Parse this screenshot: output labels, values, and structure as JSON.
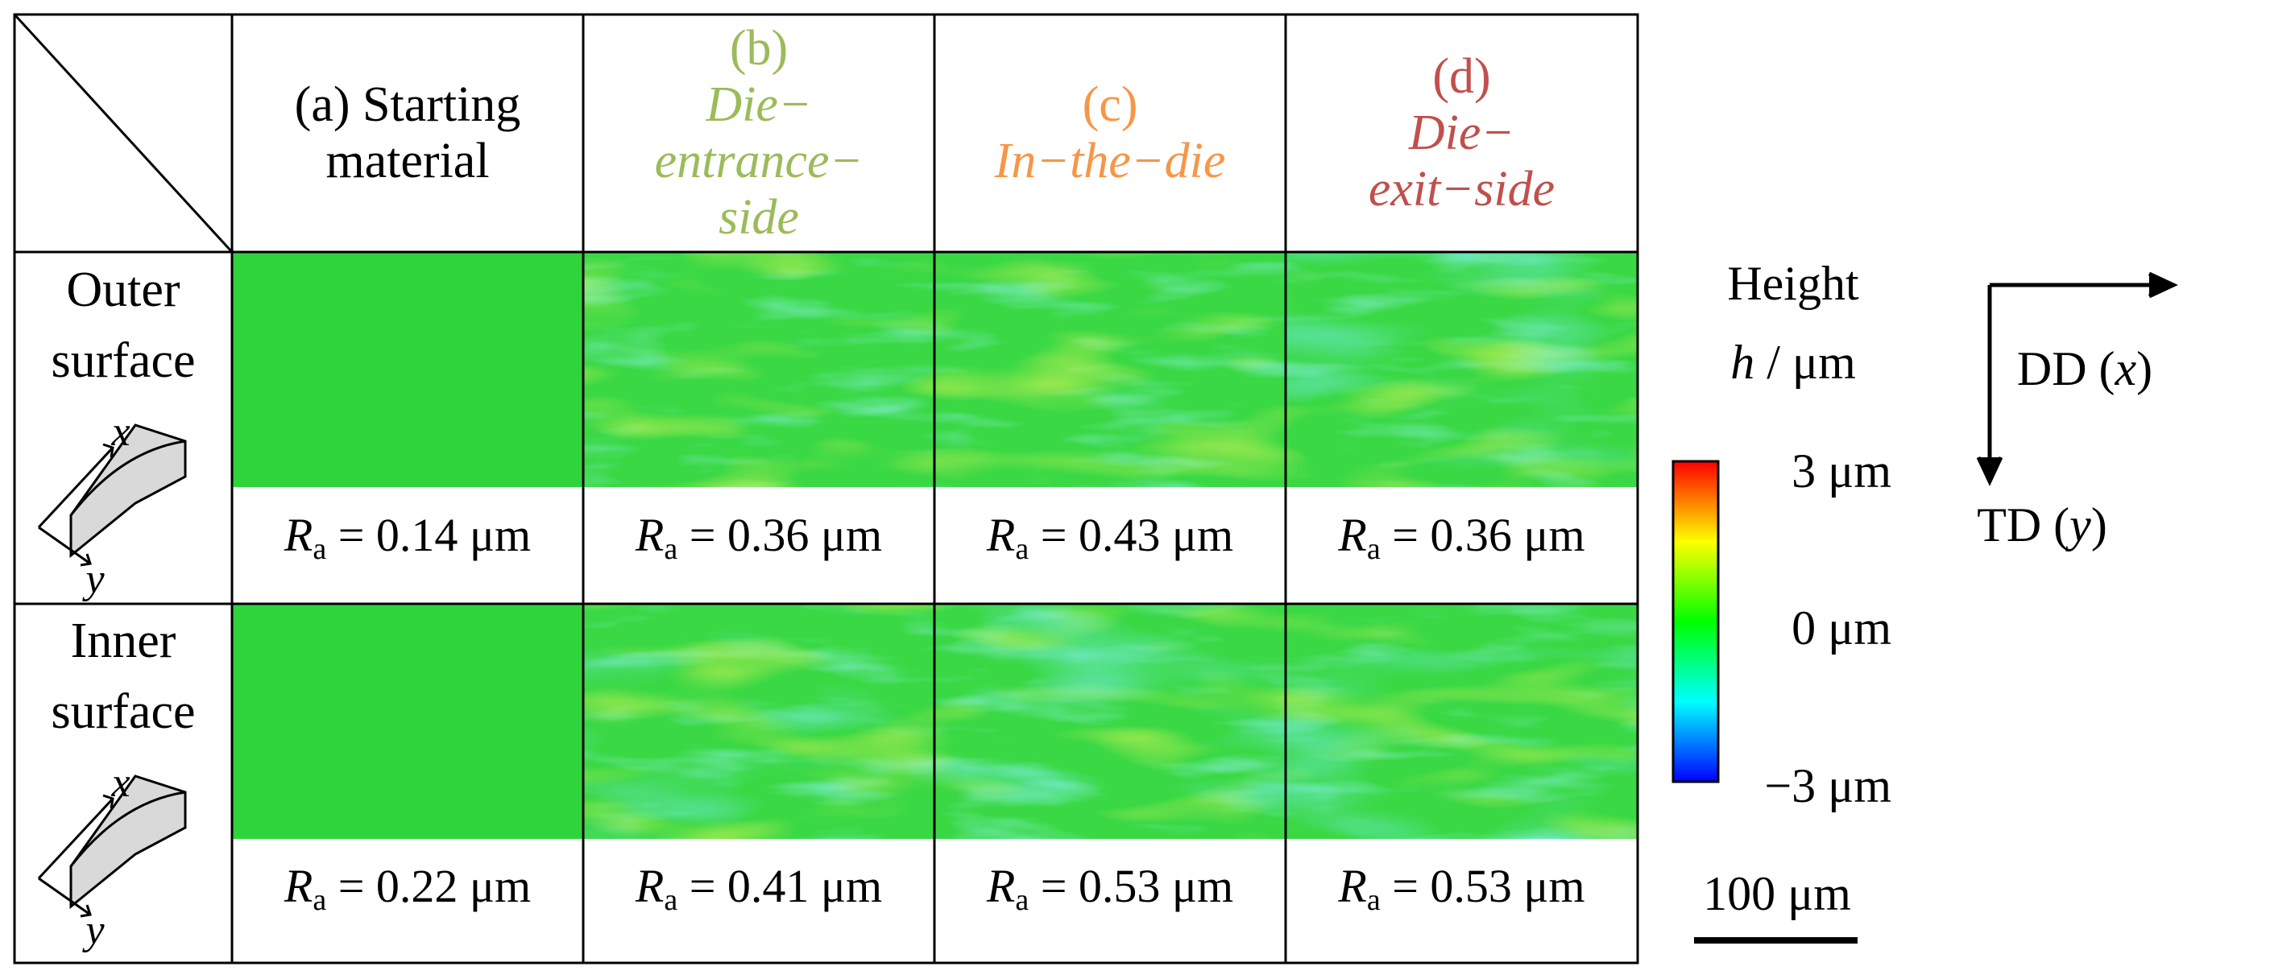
{
  "columns": [
    {
      "prefix": "(a)",
      "lines": [
        "Starting",
        "material"
      ],
      "italic": false,
      "color": "#000000"
    },
    {
      "prefix": "(b)",
      "lines": [
        "Die−",
        "entrance−",
        "side"
      ],
      "italic": true,
      "color": "#9bbb59"
    },
    {
      "prefix": "(c)",
      "lines": [
        "In−the−die"
      ],
      "italic": true,
      "color": "#f79646"
    },
    {
      "prefix": "(d)",
      "lines": [
        "Die−",
        "exit−side"
      ],
      "italic": true,
      "color": "#c0504d"
    }
  ],
  "rows": [
    {
      "label": [
        "Outer",
        "surface"
      ],
      "axis_x": "x",
      "axis_y": "y",
      "ra_symbol": "R",
      "ra_sub": "a",
      "ra_values": [
        "= 0.14 μm",
        "= 0.36 μm",
        "= 0.43 μm",
        "= 0.36 μm"
      ]
    },
    {
      "label": [
        "Inner",
        "surface"
      ],
      "axis_x": "x",
      "axis_y": "y",
      "ra_symbol": "R",
      "ra_sub": "a",
      "ra_values": [
        "= 0.22 μm",
        "= 0.41 μm",
        "= 0.53 μm",
        "= 0.53 μm"
      ]
    }
  ],
  "colorbar": {
    "title_line1": "Height",
    "title_var": "h",
    "title_unit": " / μm",
    "max_label": "3 μm",
    "mid_label": "0 μm",
    "min_label": "−3 μm",
    "colors": [
      "#ff0000",
      "#ffff00",
      "#00ff00",
      "#00ffff",
      "#0000ff"
    ]
  },
  "scale_bar": {
    "label": "100 μm"
  },
  "directions": {
    "dd_label": "DD (",
    "dd_var": "x",
    "dd_close": ")",
    "td_label": "TD (",
    "td_var": "y",
    "td_close": ")"
  }
}
